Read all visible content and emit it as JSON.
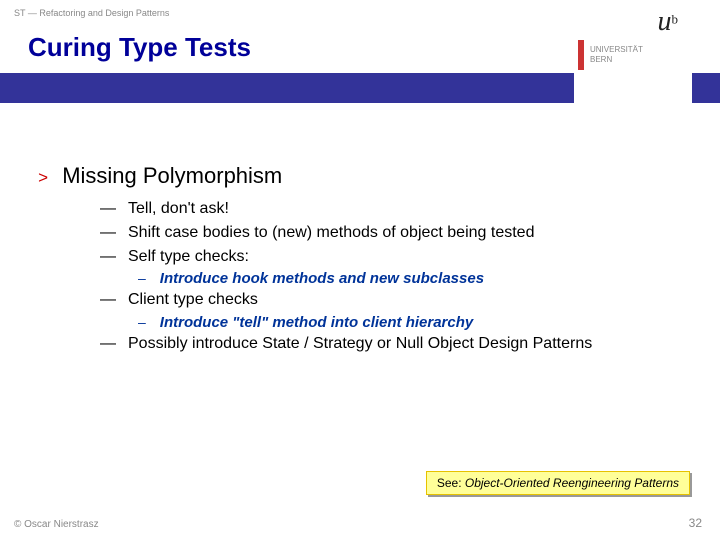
{
  "header": {
    "breadcrumb": "ST — Refactoring and Design Patterns",
    "title": "Curing Type Tests"
  },
  "logo": {
    "uni_line1": "UNIVERSITÄT",
    "uni_line2": "BERN"
  },
  "content": {
    "main_bullet": "Missing Polymorphism",
    "subs": [
      {
        "text": "Tell, don't ask!"
      },
      {
        "text": "Shift case bodies to (new) methods of object being tested"
      },
      {
        "text": "Self type checks:"
      }
    ],
    "subsub1": "Introduce hook methods and new subclasses",
    "sub4": "Client type checks",
    "subsub2": "Introduce \"tell\" method into client hierarchy",
    "sub5": "Possibly introduce State / Strategy or Null Object Design Patterns"
  },
  "see": {
    "label": "See: ",
    "ref": "Object-Oriented Reengineering Patterns"
  },
  "footer": {
    "copyright": "© Oscar Nierstrasz",
    "page": "32"
  },
  "colors": {
    "title": "#000099",
    "bar": "#333399",
    "accent_red": "#cc0000",
    "subsub": "#003399",
    "callout_bg": "#ffff99",
    "muted": "#888888"
  }
}
